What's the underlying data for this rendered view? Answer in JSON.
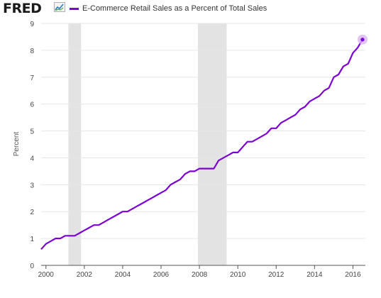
{
  "header": {
    "brand": "FRED",
    "brand_icon": "trend-line-icon"
  },
  "colors": {
    "series": "#7b00d4",
    "recession": "#e3e3e3",
    "grid": "#e6e6e6",
    "axis": "#555555",
    "endpoint_halo": "#d9b3f2"
  },
  "chart_data": {
    "type": "line",
    "ylabel": "Percent",
    "ylim": [
      0,
      9
    ],
    "xlim": [
      1999.75,
      2016.65
    ],
    "y_ticks": [
      "0",
      "1",
      "2",
      "3",
      "4",
      "5",
      "6",
      "7",
      "8",
      "9"
    ],
    "x_ticks": [
      "2000",
      "2002",
      "2004",
      "2006",
      "2008",
      "2010",
      "2012",
      "2014",
      "2016"
    ],
    "grid": true,
    "legend_position": "top-left",
    "recession_periods": [
      [
        2001.17,
        2001.83
      ],
      [
        2007.92,
        2009.42
      ]
    ],
    "series": [
      {
        "name": "E-Commerce Retail Sales as a Percent of Total Sales",
        "x": [
          1999.75,
          2000.0,
          2000.25,
          2000.5,
          2000.75,
          2001.0,
          2001.25,
          2001.5,
          2001.75,
          2002.0,
          2002.25,
          2002.5,
          2002.75,
          2003.0,
          2003.25,
          2003.5,
          2003.75,
          2004.0,
          2004.25,
          2004.5,
          2004.75,
          2005.0,
          2005.25,
          2005.5,
          2005.75,
          2006.0,
          2006.25,
          2006.5,
          2006.75,
          2007.0,
          2007.25,
          2007.5,
          2007.75,
          2008.0,
          2008.25,
          2008.5,
          2008.75,
          2009.0,
          2009.25,
          2009.5,
          2009.75,
          2010.0,
          2010.25,
          2010.5,
          2010.75,
          2011.0,
          2011.25,
          2011.5,
          2011.75,
          2012.0,
          2012.25,
          2012.5,
          2012.75,
          2013.0,
          2013.25,
          2013.5,
          2013.75,
          2014.0,
          2014.25,
          2014.5,
          2014.75,
          2015.0,
          2015.25,
          2015.5,
          2015.75,
          2016.0,
          2016.25,
          2016.5
        ],
        "values": [
          0.6,
          0.8,
          0.9,
          1.0,
          1.0,
          1.1,
          1.1,
          1.1,
          1.2,
          1.3,
          1.4,
          1.5,
          1.5,
          1.6,
          1.7,
          1.8,
          1.9,
          2.0,
          2.0,
          2.1,
          2.2,
          2.3,
          2.4,
          2.5,
          2.6,
          2.7,
          2.8,
          3.0,
          3.1,
          3.2,
          3.4,
          3.5,
          3.5,
          3.6,
          3.6,
          3.6,
          3.6,
          3.9,
          4.0,
          4.1,
          4.2,
          4.2,
          4.4,
          4.6,
          4.6,
          4.7,
          4.8,
          4.9,
          5.1,
          5.1,
          5.3,
          5.4,
          5.5,
          5.6,
          5.8,
          5.9,
          6.1,
          6.2,
          6.3,
          6.5,
          6.6,
          7.0,
          7.1,
          7.4,
          7.5,
          7.9,
          8.1,
          8.4
        ]
      }
    ]
  }
}
